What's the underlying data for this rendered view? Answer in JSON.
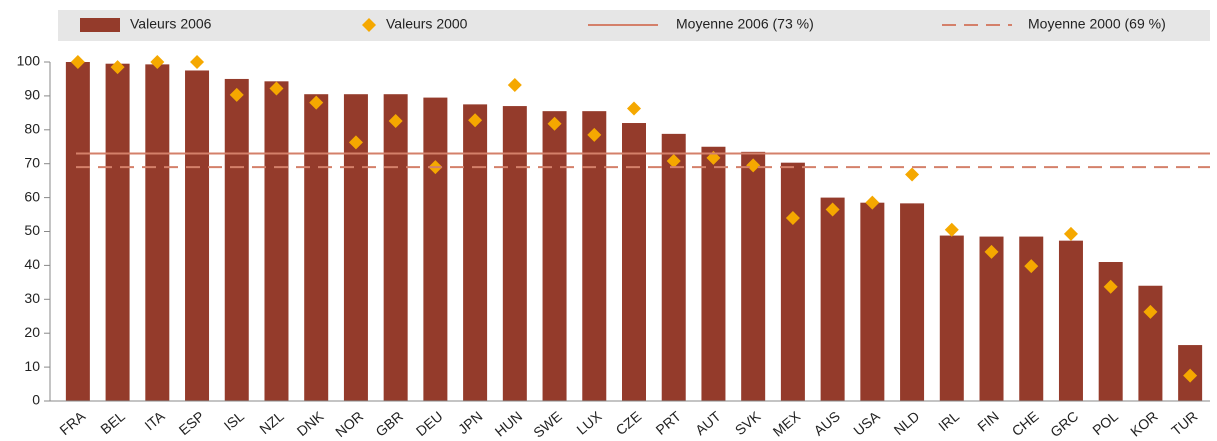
{
  "chart_data": {
    "type": "bar",
    "categories": [
      "FRA",
      "BEL",
      "ITA",
      "ESP",
      "ISL",
      "NZL",
      "DNK",
      "NOR",
      "GBR",
      "DEU",
      "JPN",
      "HUN",
      "SWE",
      "LUX",
      "CZE",
      "PRT",
      "AUT",
      "SVK",
      "MEX",
      "AUS",
      "USA",
      "NLD",
      "IRL",
      "FIN",
      "CHE",
      "GRC",
      "POL",
      "KOR",
      "TUR"
    ],
    "series": [
      {
        "name": "Valeurs 2006",
        "marker": "bar",
        "color": "#943b2b",
        "values": [
          100,
          99.5,
          99.3,
          97.5,
          95,
          94.3,
          90.5,
          90.5,
          90.5,
          89.5,
          87.5,
          87,
          85.5,
          85.5,
          82,
          78.8,
          75,
          73.5,
          70.3,
          60,
          58.5,
          58.3,
          48.8,
          48.5,
          48.5,
          47.3,
          41,
          34,
          16.5
        ]
      },
      {
        "name": "Valeurs 2000",
        "marker": "diamond",
        "color": "#f5a800",
        "values": [
          100,
          98.5,
          100,
          100,
          90.3,
          92.2,
          88,
          76.3,
          82.6,
          69,
          82.8,
          93.2,
          81.8,
          78.5,
          86.3,
          70.8,
          71.7,
          69.5,
          54,
          56.5,
          58.5,
          66.8,
          50.5,
          44,
          39.8,
          49.3,
          33.7,
          26.3,
          7.5
        ]
      }
    ],
    "reference_lines": [
      {
        "name": "Moyenne 2006 (73 %)",
        "value": 73,
        "color": "#d4806a",
        "dashed": false
      },
      {
        "name": "Moyenne 2000 (69 %)",
        "value": 69,
        "color": "#d4806a",
        "dashed": true
      }
    ],
    "ylim": [
      0,
      100
    ],
    "yticks": [
      0,
      10,
      20,
      30,
      40,
      50,
      60,
      70,
      80,
      90,
      100
    ],
    "grid": false
  }
}
